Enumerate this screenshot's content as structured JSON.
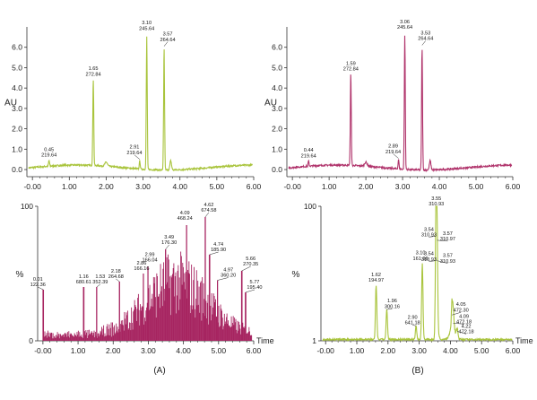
{
  "chart_data": [
    {
      "type": "line",
      "panel": "A-top",
      "ylabel": "AU",
      "xlabel": "",
      "xlim": [
        -0.15,
        6.0
      ],
      "ylim": [
        -0.35,
        7.0
      ],
      "xticks": [
        -0.0,
        1.0,
        2.0,
        3.0,
        4.0,
        5.0,
        6.0
      ],
      "xtick_labels": [
        "-0.00",
        "1.00",
        "2.00",
        "3.00",
        "4.00",
        "5.00",
        "6.00"
      ],
      "yticks": [
        0,
        1,
        2,
        3,
        4,
        5,
        6
      ],
      "ytick_labels": [
        "0.0",
        "1.0",
        "2.0",
        "3.0",
        "4.0",
        "5.0",
        "6.0"
      ],
      "color": "#a9c43c",
      "series": [
        {
          "values": [
            {
              "x": 0.45,
              "y": 0.38
            },
            {
              "x": 1.65,
              "y": 4.35
            },
            {
              "x": 2.91,
              "y": 0.5
            },
            {
              "x": 3.1,
              "y": 6.6
            },
            {
              "x": 3.57,
              "y": 6.05
            }
          ]
        }
      ],
      "annotations": [
        {
          "x": 0.45,
          "y": 0.38,
          "lines": [
            "0.45",
            "219.64"
          ]
        },
        {
          "x": 1.65,
          "y": 4.35,
          "lines": [
            "1.65",
            "272.84"
          ]
        },
        {
          "x": 2.91,
          "y": 0.5,
          "lines": [
            "2.91",
            "219.64"
          ]
        },
        {
          "x": 3.1,
          "y": 6.6,
          "lines": [
            "3.10",
            "245.64"
          ]
        },
        {
          "x": 3.57,
          "y": 6.05,
          "lines": [
            "3.57",
            "264.64"
          ]
        }
      ]
    },
    {
      "type": "line",
      "panel": "B-top",
      "ylabel": "AU",
      "xlabel": "",
      "xlim": [
        -0.15,
        6.0
      ],
      "ylim": [
        -0.35,
        7.0
      ],
      "xticks": [
        -0.0,
        1.0,
        2.0,
        3.0,
        4.0,
        5.0,
        6.0
      ],
      "xtick_labels": [
        "-0.00",
        "1.00",
        "2.00",
        "3.00",
        "4.00",
        "5.00",
        "6.00"
      ],
      "yticks": [
        0,
        1,
        2,
        3,
        4,
        5,
        6
      ],
      "ytick_labels": [
        "0.0",
        "1.0",
        "2.0",
        "3.0",
        "4.0",
        "5.0",
        "6.0"
      ],
      "color": "#b0336b",
      "series": [
        {
          "values": [
            {
              "x": 0.44,
              "y": 0.35
            },
            {
              "x": 1.59,
              "y": 4.6
            },
            {
              "x": 2.89,
              "y": 0.55
            },
            {
              "x": 3.06,
              "y": 6.65
            },
            {
              "x": 3.53,
              "y": 6.1
            }
          ]
        }
      ],
      "annotations": [
        {
          "x": 0.44,
          "y": 0.35,
          "lines": [
            "0.44",
            "219.64"
          ]
        },
        {
          "x": 1.59,
          "y": 4.6,
          "lines": [
            "1.59",
            "272.84"
          ]
        },
        {
          "x": 2.89,
          "y": 0.55,
          "lines": [
            "2.89",
            "219.64"
          ]
        },
        {
          "x": 3.06,
          "y": 6.65,
          "lines": [
            "3.06",
            "245.64"
          ]
        },
        {
          "x": 3.53,
          "y": 6.1,
          "lines": [
            "3.53",
            "264.64"
          ]
        }
      ]
    },
    {
      "type": "line",
      "panel": "A-bottom",
      "ylabel": "%",
      "xlabel": "Time",
      "xlim": [
        -0.15,
        6.0
      ],
      "ylim": [
        0,
        100
      ],
      "xticks": [
        -0.0,
        1.0,
        2.0,
        3.0,
        4.0,
        5.0,
        6.0
      ],
      "xtick_labels": [
        "-0.00",
        "1.00",
        "2.00",
        "3.00",
        "4.00",
        "5.00",
        "6.00"
      ],
      "yticks": [
        0,
        100
      ],
      "ytick_labels": [
        "0",
        "100"
      ],
      "color": "#a72561",
      "series": [
        {
          "values": [
            {
              "x": 0.01,
              "y": 38
            },
            {
              "x": 1.16,
              "y": 40
            },
            {
              "x": 1.53,
              "y": 40
            },
            {
              "x": 2.18,
              "y": 44
            },
            {
              "x": 2.86,
              "y": 50
            },
            {
              "x": 2.99,
              "y": 55
            },
            {
              "x": 3.49,
              "y": 68
            },
            {
              "x": 4.09,
              "y": 86
            },
            {
              "x": 4.62,
              "y": 92
            },
            {
              "x": 4.74,
              "y": 64
            },
            {
              "x": 4.97,
              "y": 45
            },
            {
              "x": 5.66,
              "y": 52
            },
            {
              "x": 5.77,
              "y": 36
            }
          ]
        }
      ],
      "annotations": [
        {
          "x": 0.01,
          "y": 38,
          "lines": [
            "0.01",
            "122.36"
          ]
        },
        {
          "x": 1.16,
          "y": 40,
          "lines": [
            "1.16",
            "680.61"
          ]
        },
        {
          "x": 1.53,
          "y": 40,
          "lines": [
            "1.53",
            "352.39"
          ]
        },
        {
          "x": 2.18,
          "y": 44,
          "lines": [
            "2.18",
            "264.68"
          ]
        },
        {
          "x": 2.86,
          "y": 50,
          "lines": [
            "2.86",
            "166.16"
          ]
        },
        {
          "x": 2.99,
          "y": 55,
          "lines": [
            "2.99",
            "166.04"
          ]
        },
        {
          "x": 3.49,
          "y": 68,
          "lines": [
            "3.49",
            "176.30"
          ]
        },
        {
          "x": 4.09,
          "y": 86,
          "lines": [
            "4.09",
            "468.24"
          ]
        },
        {
          "x": 4.62,
          "y": 92,
          "lines": [
            "4.62",
            "674.58"
          ]
        },
        {
          "x": 4.74,
          "y": 64,
          "lines": [
            "4.74",
            "185.90"
          ]
        },
        {
          "x": 4.97,
          "y": 45,
          "lines": [
            "4.97",
            "360.20"
          ]
        },
        {
          "x": 5.66,
          "y": 52,
          "lines": [
            "5.66",
            "270.35"
          ]
        },
        {
          "x": 5.77,
          "y": 36,
          "lines": [
            "5.77",
            "195.40"
          ]
        }
      ]
    },
    {
      "type": "line",
      "panel": "B-bottom",
      "ylabel": "%",
      "xlabel": "Time",
      "xlim": [
        -0.15,
        6.0
      ],
      "ylim": [
        1,
        100
      ],
      "xticks": [
        -0.0,
        1.0,
        2.0,
        3.0,
        4.0,
        5.0,
        6.0
      ],
      "xtick_labels": [
        "-0.00",
        "1.00",
        "2.00",
        "3.00",
        "4.00",
        "5.00",
        "6.00"
      ],
      "yticks": [
        1,
        100
      ],
      "ytick_labels": [
        "1",
        "100"
      ],
      "color": "#a9c43c",
      "series": [
        {
          "values": [
            {
              "x": 1.62,
              "y": 42
            },
            {
              "x": 1.96,
              "y": 24
            },
            {
              "x": 2.9,
              "y": 12
            },
            {
              "x": 3.1,
              "y": 58
            },
            {
              "x": 3.54,
              "y": 98
            },
            {
              "x": 3.57,
              "y": 72
            },
            {
              "x": 4.05,
              "y": 20
            },
            {
              "x": 4.09,
              "y": 14
            },
            {
              "x": 4.22,
              "y": 8
            }
          ]
        }
      ],
      "annotations": [
        {
          "x": 1.62,
          "y": 42,
          "lines": [
            "1.62",
            "194.97"
          ]
        },
        {
          "x": 1.96,
          "y": 24,
          "lines": [
            "1.96",
            "300.16"
          ]
        },
        {
          "x": 2.9,
          "y": 12,
          "lines": [
            "2.90",
            "641.18"
          ]
        },
        {
          "x": 3.1,
          "y": 58,
          "lines": [
            "3.10",
            "161.96"
          ]
        },
        {
          "x": 3.54,
          "y": 60,
          "lines": [
            "3.54",
            "310.93"
          ]
        },
        {
          "x": 3.54,
          "y": 78,
          "lines": [
            "3.54",
            "310.93"
          ]
        },
        {
          "x": 3.55,
          "y": 98,
          "lines": [
            "3.55",
            "310.93"
          ]
        },
        {
          "x": 3.57,
          "y": 75,
          "lines": [
            "3.57",
            "310.97"
          ]
        },
        {
          "x": 3.57,
          "y": 60,
          "lines": [
            "3.57",
            "310.93"
          ]
        },
        {
          "x": 4.05,
          "y": 20,
          "lines": [
            "4.05",
            "472.30"
          ]
        },
        {
          "x": 4.09,
          "y": 14,
          "lines": [
            "4.09",
            "472.18"
          ]
        },
        {
          "x": 4.22,
          "y": 8,
          "lines": [
            "4.22",
            "472.18"
          ]
        }
      ]
    }
  ],
  "captions": {
    "left": "(A)",
    "right": "(B)"
  }
}
